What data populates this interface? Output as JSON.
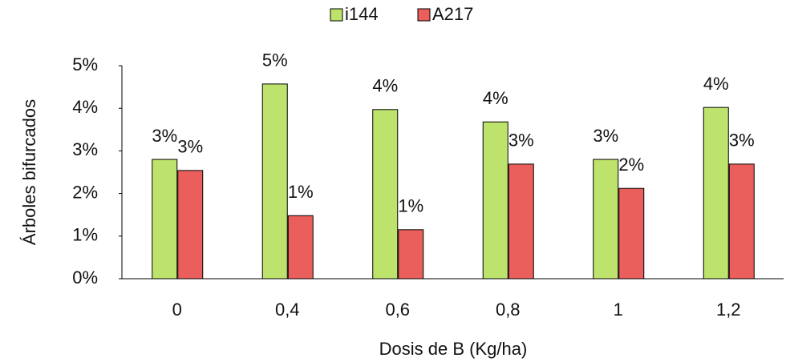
{
  "chart_data": {
    "type": "bar",
    "x_label": "Dosis de B (Kg/ha)",
    "y_label": "Árboles bifurcados",
    "categories": [
      "0",
      "0,4",
      "0,6",
      "0,8",
      "1",
      "1,2"
    ],
    "series": [
      {
        "name": "i144",
        "color": "#bde36d",
        "values": [
          2.8,
          4.57,
          3.97,
          3.68,
          2.8,
          4.02
        ],
        "value_labels": [
          "3%",
          "5%",
          "4%",
          "4%",
          "3%",
          "4%"
        ]
      },
      {
        "name": "A217",
        "color": "#ea5f5b",
        "values": [
          2.54,
          1.48,
          1.15,
          2.69,
          2.12,
          2.69
        ],
        "value_labels": [
          "3%",
          "1%",
          "1%",
          "3%",
          "2%",
          "3%"
        ]
      }
    ],
    "ylim": [
      0,
      5
    ],
    "yticks": [
      {
        "value": 0,
        "label": "0%"
      },
      {
        "value": 1,
        "label": "1%"
      },
      {
        "value": 2,
        "label": "2%"
      },
      {
        "value": 3,
        "label": "3%"
      },
      {
        "value": 4,
        "label": "4%"
      },
      {
        "value": 5,
        "label": "5%"
      }
    ],
    "legend": "top",
    "grid": false
  }
}
